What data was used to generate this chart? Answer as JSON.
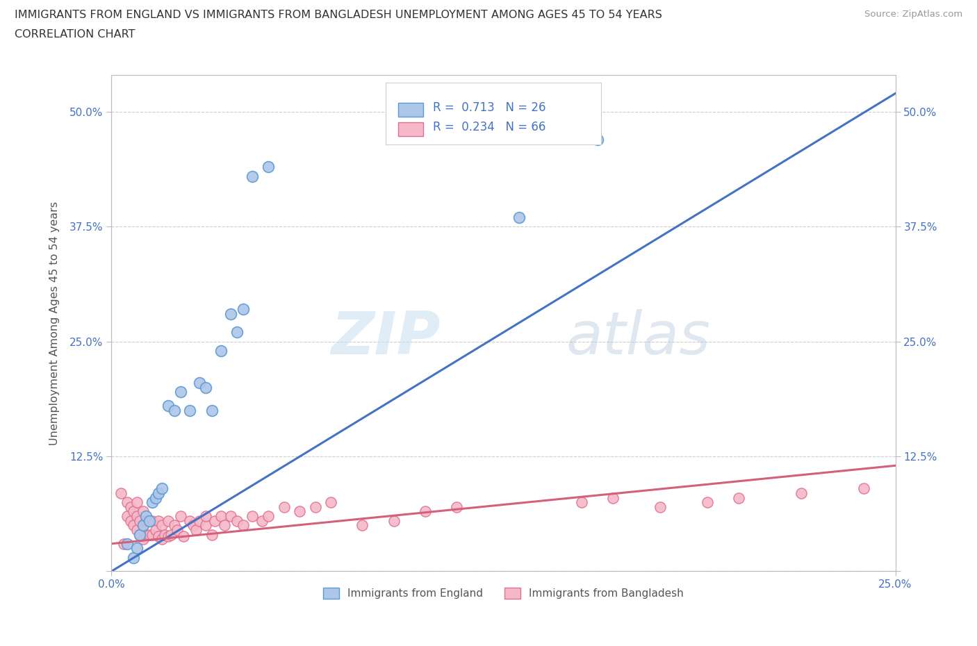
{
  "title_line1": "IMMIGRANTS FROM ENGLAND VS IMMIGRANTS FROM BANGLADESH UNEMPLOYMENT AMONG AGES 45 TO 54 YEARS",
  "title_line2": "CORRELATION CHART",
  "source": "Source: ZipAtlas.com",
  "ylabel": "Unemployment Among Ages 45 to 54 years",
  "xlim": [
    0.0,
    0.25
  ],
  "ylim": [
    0.0,
    0.54
  ],
  "xticks": [
    0.0,
    0.25
  ],
  "yticks": [
    0.0,
    0.125,
    0.25,
    0.375,
    0.5
  ],
  "xtick_labels": [
    "0.0%",
    "25.0%"
  ],
  "ytick_labels": [
    "",
    "12.5%",
    "25.0%",
    "37.5%",
    "50.0%"
  ],
  "england_color": "#aec6e8",
  "england_edge_color": "#5b9bd5",
  "bangladesh_color": "#f4b8c8",
  "bangladesh_edge_color": "#e07090",
  "england_line_color": "#4472C4",
  "bangladesh_line_color": "#d4607a",
  "england_R": 0.713,
  "england_N": 26,
  "bangladesh_R": 0.234,
  "bangladesh_N": 66,
  "watermark_zip": "ZIP",
  "watermark_atlas": "atlas",
  "england_line_x": [
    0.0,
    0.25
  ],
  "england_line_y": [
    0.0,
    0.52
  ],
  "bangladesh_line_x": [
    0.0,
    0.25
  ],
  "bangladesh_line_y": [
    0.03,
    0.115
  ],
  "england_x": [
    0.005,
    0.007,
    0.008,
    0.009,
    0.01,
    0.011,
    0.012,
    0.013,
    0.014,
    0.015,
    0.016,
    0.018,
    0.02,
    0.022,
    0.025,
    0.028,
    0.03,
    0.032,
    0.035,
    0.038,
    0.04,
    0.042,
    0.045,
    0.05,
    0.13,
    0.155
  ],
  "england_y": [
    0.03,
    0.015,
    0.025,
    0.04,
    0.05,
    0.06,
    0.055,
    0.075,
    0.08,
    0.085,
    0.09,
    0.18,
    0.175,
    0.195,
    0.175,
    0.205,
    0.2,
    0.175,
    0.24,
    0.28,
    0.26,
    0.285,
    0.43,
    0.44,
    0.385,
    0.47
  ],
  "bangladesh_x": [
    0.003,
    0.004,
    0.005,
    0.005,
    0.006,
    0.006,
    0.007,
    0.007,
    0.008,
    0.008,
    0.008,
    0.009,
    0.009,
    0.01,
    0.01,
    0.01,
    0.011,
    0.011,
    0.012,
    0.012,
    0.013,
    0.013,
    0.014,
    0.015,
    0.015,
    0.016,
    0.016,
    0.017,
    0.018,
    0.018,
    0.019,
    0.02,
    0.021,
    0.022,
    0.023,
    0.025,
    0.026,
    0.027,
    0.028,
    0.03,
    0.03,
    0.032,
    0.033,
    0.035,
    0.036,
    0.038,
    0.04,
    0.042,
    0.045,
    0.048,
    0.05,
    0.055,
    0.06,
    0.065,
    0.07,
    0.08,
    0.09,
    0.1,
    0.11,
    0.15,
    0.16,
    0.175,
    0.19,
    0.2,
    0.22,
    0.24
  ],
  "bangladesh_y": [
    0.085,
    0.03,
    0.06,
    0.075,
    0.055,
    0.07,
    0.05,
    0.065,
    0.045,
    0.06,
    0.075,
    0.04,
    0.055,
    0.035,
    0.05,
    0.065,
    0.04,
    0.055,
    0.04,
    0.055,
    0.04,
    0.055,
    0.045,
    0.038,
    0.055,
    0.035,
    0.05,
    0.04,
    0.038,
    0.055,
    0.04,
    0.05,
    0.045,
    0.06,
    0.038,
    0.055,
    0.05,
    0.045,
    0.055,
    0.05,
    0.06,
    0.04,
    0.055,
    0.06,
    0.05,
    0.06,
    0.055,
    0.05,
    0.06,
    0.055,
    0.06,
    0.07,
    0.065,
    0.07,
    0.075,
    0.05,
    0.055,
    0.065,
    0.07,
    0.075,
    0.08,
    0.07,
    0.075,
    0.08,
    0.085,
    0.09
  ]
}
